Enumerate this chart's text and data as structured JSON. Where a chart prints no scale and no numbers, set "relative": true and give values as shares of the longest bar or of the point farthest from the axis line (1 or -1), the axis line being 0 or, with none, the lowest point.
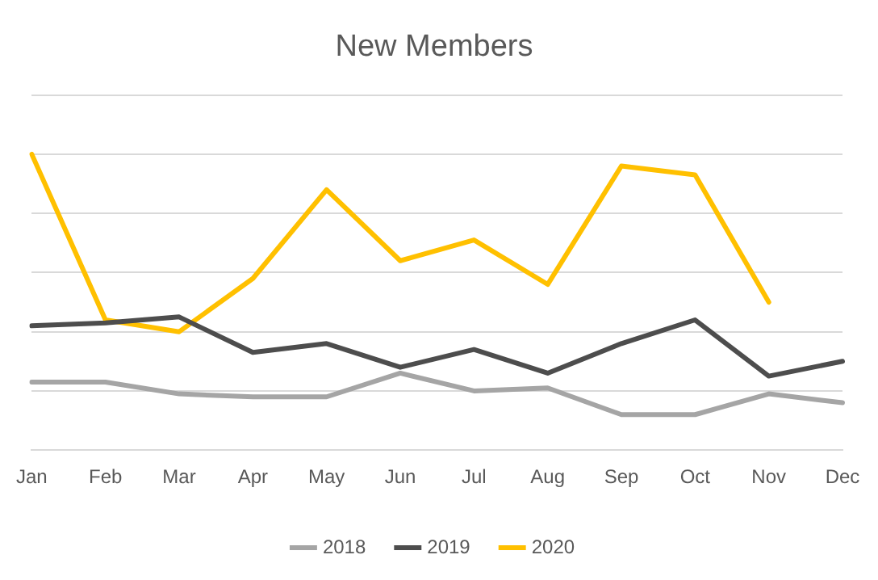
{
  "chart_data": {
    "type": "line",
    "title": "New Members",
    "relative": true,
    "grid": "y",
    "legend": "bottom",
    "marker": "none",
    "line_style": "solid",
    "categories": [
      "Jan",
      "Feb",
      "Mar",
      "Apr",
      "May",
      "Jun",
      "Jul",
      "Aug",
      "Sep",
      "Oct",
      "Nov",
      "Dec"
    ],
    "series": [
      {
        "name": "2018",
        "color": "#a5a5a5",
        "values": [
          0.23,
          0.23,
          0.19,
          0.18,
          0.18,
          0.26,
          0.2,
          0.21,
          0.12,
          0.12,
          0.19,
          0.16
        ]
      },
      {
        "name": "2019",
        "color": "#4d4d4d",
        "values": [
          0.42,
          0.43,
          0.45,
          0.33,
          0.36,
          0.28,
          0.34,
          0.26,
          0.36,
          0.44,
          0.25,
          0.3
        ]
      },
      {
        "name": "2020",
        "color": "#ffc000",
        "values": [
          1,
          0.44,
          0.4,
          0.58,
          0.88,
          0.64,
          0.71,
          0.56,
          0.96,
          0.93,
          0.5,
          null
        ]
      }
    ]
  }
}
